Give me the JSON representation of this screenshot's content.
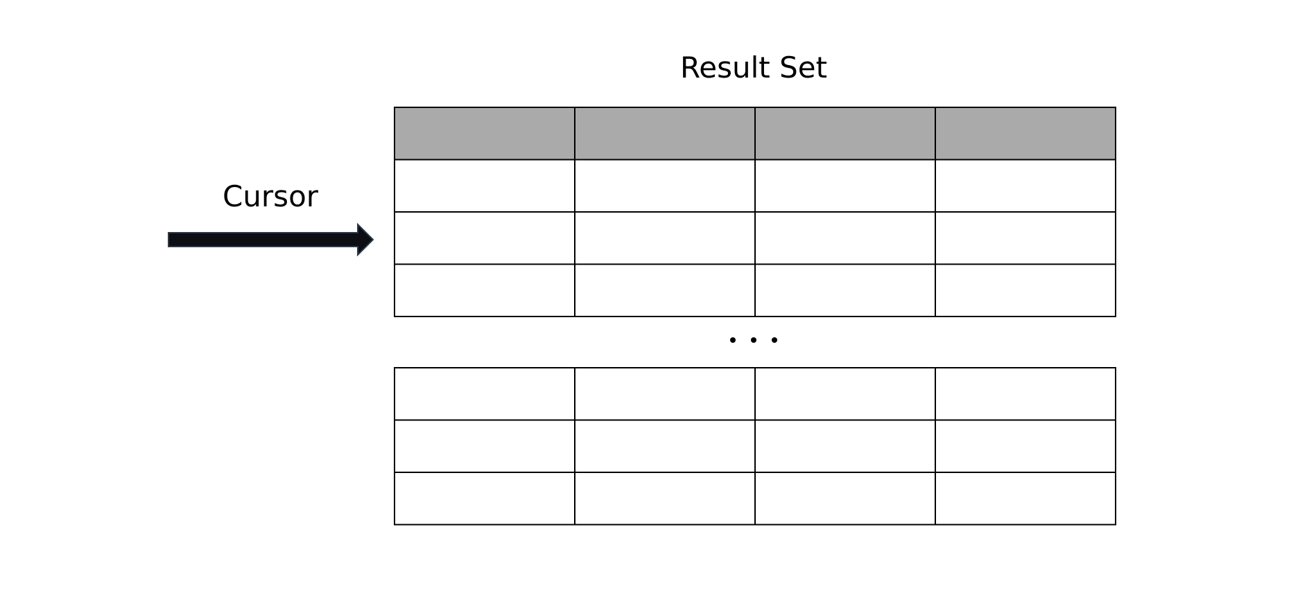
{
  "title": "Result Set",
  "cursor_label": "Cursor",
  "ellipsis_label": "...",
  "table": {
    "columns": 4,
    "top_block": {
      "header_rows": 1,
      "data_rows": 3
    },
    "bottom_block": {
      "data_rows": 3
    }
  },
  "colors": {
    "header_fill": "#aaaaaa",
    "border": "#000000",
    "arrow_fill": "#0d0d14",
    "background": "#ffffff"
  }
}
